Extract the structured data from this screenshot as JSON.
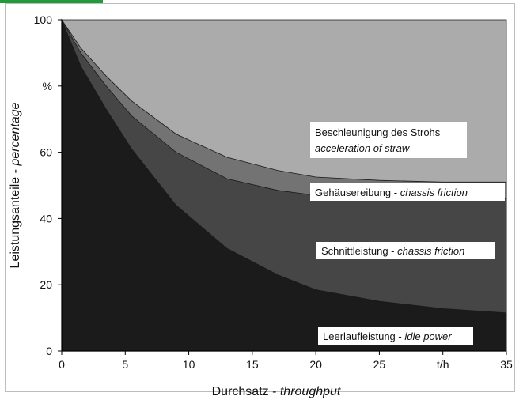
{
  "chart_data": {
    "type": "area",
    "stacked": true,
    "xlabel": {
      "main": "Durchsatz - ",
      "italic": "throughput"
    },
    "ylabel": {
      "main": "Leistungsanteile - ",
      "italic": "percentage"
    },
    "xlim": [
      0,
      35
    ],
    "ylim": [
      0,
      100
    ],
    "x_ticks": [
      "0",
      "5",
      "10",
      "15",
      "20",
      "25",
      "t/h",
      "35"
    ],
    "y_ticks": [
      "0",
      "20",
      "40",
      "60",
      "%",
      "100"
    ],
    "x": [
      0,
      1.5,
      3.5,
      5.5,
      9,
      13,
      17,
      20,
      25,
      30,
      35
    ],
    "series": [
      {
        "name": "Leerlaufleistung - idle power",
        "name_main": "Leerlaufleistung - ",
        "name_italic": "idle power",
        "color": "#1b1b1b",
        "cumulative": [
          100,
          86,
          73,
          61,
          44,
          31,
          23,
          18.5,
          15,
          12.8,
          11.5
        ]
      },
      {
        "name": "Schnittleistung - chassis friction",
        "name_main": "Schnittleistung - ",
        "name_italic": "chassis friction",
        "color": "#464646",
        "cumulative": [
          100,
          90,
          80,
          71,
          60,
          52,
          48.5,
          47,
          46.5,
          46,
          46
        ]
      },
      {
        "name": "Gehäusereibung - chassis friction",
        "name_main": "Gehäusereibung - ",
        "name_italic": "chassis friction",
        "color": "#737373",
        "cumulative": [
          100,
          91.5,
          83,
          75.5,
          65.5,
          58.5,
          54.5,
          52.5,
          51.5,
          51,
          51
        ]
      },
      {
        "name": "Beschleunigung des Strohs acceleration of straw",
        "name_main": "Beschleunigung des Strohs",
        "name_italic": "acceleration of straw",
        "color": "#ababab",
        "cumulative": [
          100,
          100,
          100,
          100,
          100,
          100,
          100,
          100,
          100,
          100,
          100
        ]
      }
    ],
    "grid": false,
    "legend": "inline labels"
  }
}
